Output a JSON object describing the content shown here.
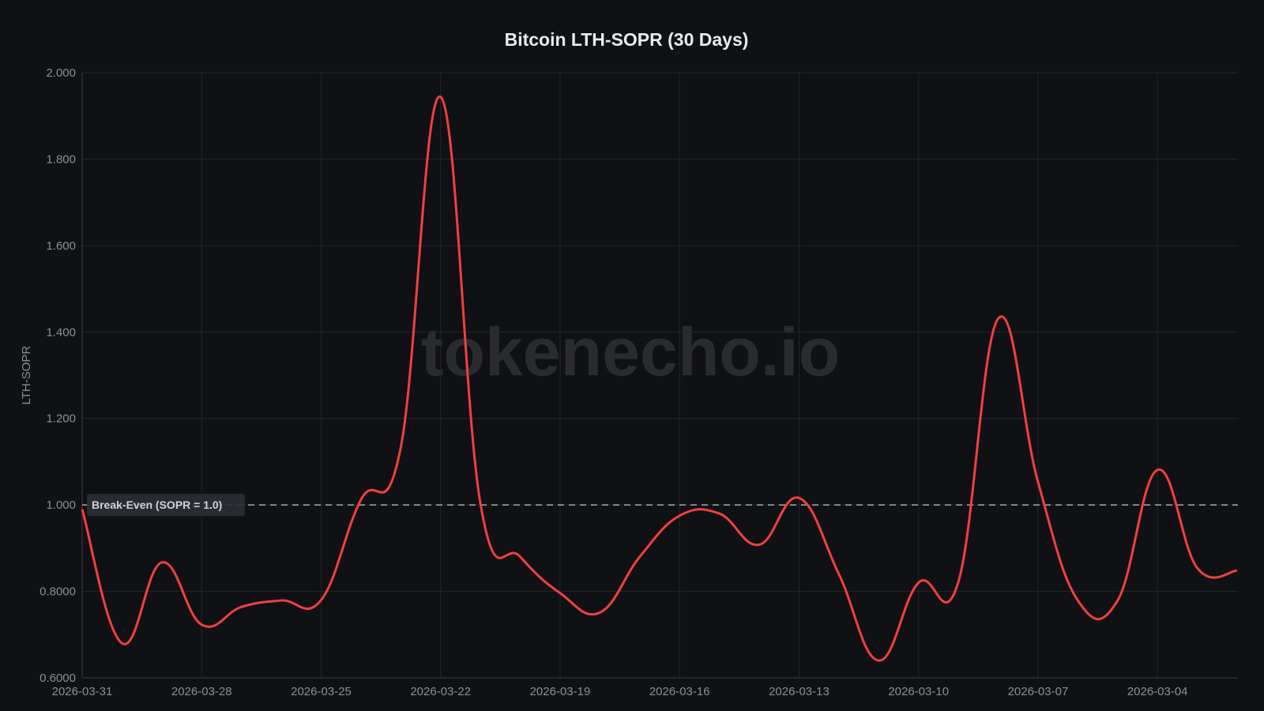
{
  "chart_data": {
    "type": "line",
    "title": "Bitcoin LTH-SOPR (30 Days)",
    "xlabel": "",
    "ylabel": "LTH-SOPR",
    "watermark": "tokenecho.io",
    "ylim": [
      0.6,
      2.0
    ],
    "y_ticks": [
      {
        "value": 0.6,
        "label": "0.6000"
      },
      {
        "value": 0.8,
        "label": "0.8000"
      },
      {
        "value": 1.0,
        "label": "1.000"
      },
      {
        "value": 1.2,
        "label": "1.200"
      },
      {
        "value": 1.4,
        "label": "1.400"
      },
      {
        "value": 1.6,
        "label": "1.600"
      },
      {
        "value": 1.8,
        "label": "1.800"
      },
      {
        "value": 2.0,
        "label": "2.000"
      }
    ],
    "x_tick_labels": [
      "2026-03-31",
      "2026-03-28",
      "2026-03-25",
      "2026-03-22",
      "2026-03-19",
      "2026-03-16",
      "2026-03-13",
      "2026-03-10",
      "2026-03-07",
      "2026-03-04"
    ],
    "x": [
      "2026-03-31",
      "2026-03-30",
      "2026-03-29",
      "2026-03-28",
      "2026-03-27",
      "2026-03-26",
      "2026-03-25",
      "2026-03-24",
      "2026-03-23",
      "2026-03-22",
      "2026-03-21",
      "2026-03-20",
      "2026-03-19",
      "2026-03-18",
      "2026-03-17",
      "2026-03-16",
      "2026-03-15",
      "2026-03-14",
      "2026-03-13",
      "2026-03-12",
      "2026-03-11",
      "2026-03-10",
      "2026-03-09",
      "2026-03-08",
      "2026-03-07",
      "2026-03-06",
      "2026-03-05",
      "2026-03-04",
      "2026-03-03",
      "2026-03-02"
    ],
    "series": [
      {
        "values": [
          0.99,
          0.68,
          0.867,
          0.723,
          0.764,
          0.779,
          0.78,
          1.012,
          1.133,
          1.944,
          1.003,
          0.88,
          0.796,
          0.751,
          0.88,
          0.975,
          0.98,
          0.908,
          1.016,
          0.84,
          0.64,
          0.82,
          0.822,
          1.431,
          1.053,
          0.779,
          0.779,
          1.081,
          0.854,
          0.848
        ],
        "color": "#f04040"
      }
    ],
    "reference_line": {
      "value": 1.0,
      "label": "Break-Even (SOPR = 1.0)",
      "color": "#9aa0a8",
      "style": "dashed"
    },
    "grid": true,
    "legend": "none"
  }
}
